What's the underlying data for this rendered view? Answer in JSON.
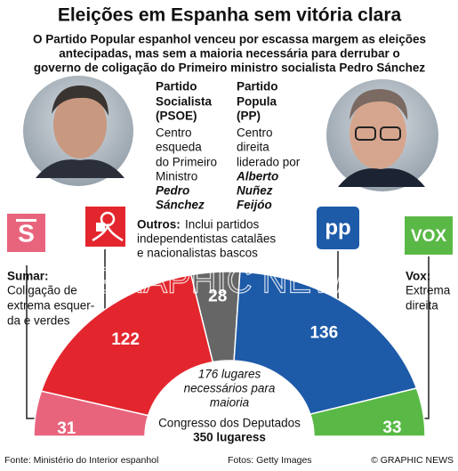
{
  "chart_data": {
    "type": "semicircle",
    "title": "Eleições em Espanha sem vitória clara",
    "subtitle": [
      "O Partido Popular espanhol venceu por escassa margem as eleições",
      "antecipadas, mas sem a maioria necessária para derrubar o",
      "governo de coligação do Primeiro ministro socialista Pedro Sánchez"
    ],
    "parties": [
      {
        "logo_text": "S",
        "name_lines": [
          "Sumar:"
        ],
        "description_lines": [
          "Coligação de",
          "extrema esquer-",
          "da e verdes"
        ],
        "value": 31,
        "color": "#e8647d"
      },
      {
        "name_lines": [
          "Partido",
          "Socialista",
          "(PSOE)"
        ],
        "description_lines": [
          "Centro",
          "esqueda",
          "do Primeiro",
          "Ministro"
        ],
        "leader_lines": [
          "Pedro",
          "Sánchez"
        ],
        "value": 122,
        "color": "#e3262d"
      },
      {
        "name_lines": [
          "Outros:"
        ],
        "description_lines": [
          "Inclui partidos",
          "independentistas catalães",
          "e nacionalistas bascos"
        ],
        "value": 28,
        "color": "#666666"
      },
      {
        "logo_text": "pp",
        "name_lines": [
          "Partido",
          "Popula",
          "(PP)"
        ],
        "description_lines": [
          "Centro",
          "direita",
          "liderado por"
        ],
        "leader_lines": [
          "Alberto",
          "Nuñez",
          "Feijóo"
        ],
        "value": 136,
        "color": "#1d5aa8"
      },
      {
        "logo_text": "VOX",
        "name_lines": [
          "Vox:"
        ],
        "description_lines": [
          "Extrema",
          "direita"
        ],
        "value": 33,
        "color": "#5ab946"
      }
    ],
    "majority_note": [
      "176 lugares",
      "necessários para",
      "maioria"
    ],
    "chamber": "Congresso dos Deputados",
    "total": "350 lugaress",
    "watermark": "GRAPHIC NEWS",
    "source": "Fonte: Ministério do Interior espanhol",
    "photos": "Fotos: Getty Images",
    "credit": "© GRAPHIC NEWS"
  }
}
